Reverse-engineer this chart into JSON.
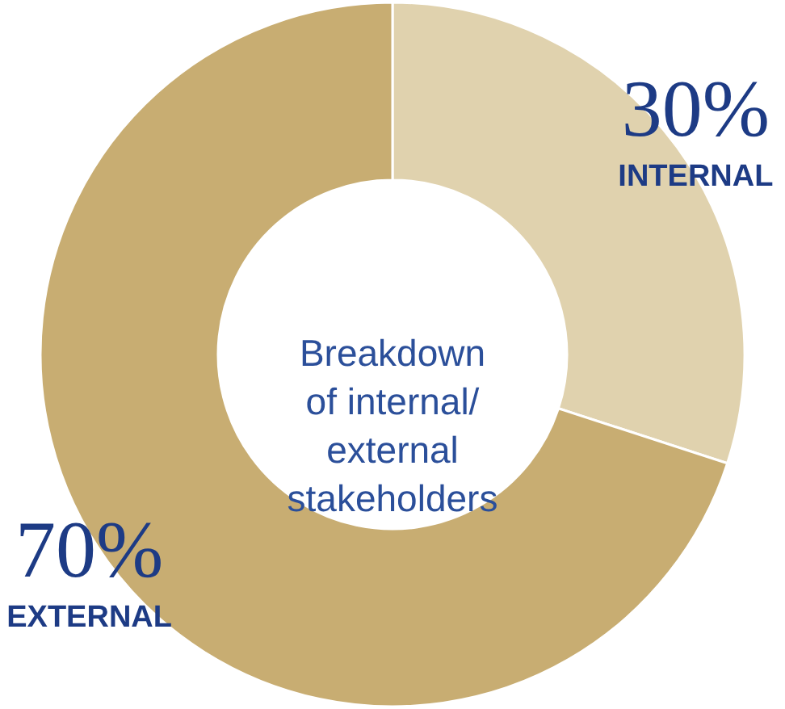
{
  "chart_data": {
    "type": "donut",
    "title": "Breakdown\nof internal/\nexternal\nstakeholders",
    "categories": [
      "INTERNAL",
      "EXTERNAL"
    ],
    "values": [
      30,
      70
    ],
    "colors": [
      "#e0d2ae",
      "#c8ad72"
    ],
    "value_labels": [
      "30%",
      "70%"
    ]
  }
}
